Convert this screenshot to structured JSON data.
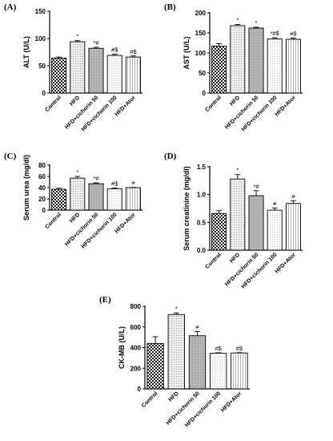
{
  "chart_data": [
    {
      "panel": "(A)",
      "type": "bar",
      "ylabel": "ALT (U/L)",
      "ylim": [
        0,
        150
      ],
      "yticks": [
        0,
        50,
        100,
        150
      ],
      "categories": [
        "Control",
        "HFD",
        "HFD+cichorin 50",
        "HFD+cichorin 100",
        "HFD+Ator"
      ],
      "values": [
        64,
        94,
        82,
        69,
        66
      ],
      "errors": [
        2,
        2,
        2,
        2,
        2
      ],
      "annotations": [
        "",
        "*",
        "*#",
        "#$",
        "#$"
      ]
    },
    {
      "panel": "(B)",
      "type": "bar",
      "ylabel": "AST (U/L)",
      "ylim": [
        0,
        200
      ],
      "yticks": [
        0,
        50,
        100,
        150,
        200
      ],
      "categories": [
        "Control",
        "HFD",
        "HFD+cichorin 50",
        "HFD+cichorin 100",
        "HFD+Ator"
      ],
      "values": [
        117,
        168,
        162,
        135,
        134
      ],
      "errors": [
        6,
        3,
        2,
        3,
        3
      ],
      "annotations": [
        "",
        "*",
        "*",
        "*#$",
        "#$"
      ]
    },
    {
      "panel": "(C)",
      "type": "bar",
      "ylabel": "Serum urea (mg/dl)",
      "ylim": [
        0,
        80
      ],
      "yticks": [
        0,
        20,
        40,
        60,
        80
      ],
      "categories": [
        "Control",
        "HFD",
        "HFD+cichorin 50",
        "HFD+cichorin 100",
        "HFD+Ator"
      ],
      "values": [
        37,
        57,
        47,
        38,
        40
      ],
      "errors": [
        2,
        3,
        1.5,
        1.5,
        0.5
      ],
      "annotations": [
        "",
        "*",
        "*#",
        "#$",
        "#"
      ]
    },
    {
      "panel": "(D)",
      "type": "bar",
      "ylabel": "Serum creatinine (mg/dl)",
      "ylim": [
        0,
        1.5
      ],
      "yticks": [
        "0.0",
        "0.5",
        "1.0",
        "1.5"
      ],
      "categories": [
        "Control",
        "HFD",
        "HFD+cichorin 50",
        "HFD+cichorin 100",
        "HFD+Ator"
      ],
      "values": [
        0.66,
        1.28,
        0.98,
        0.72,
        0.84
      ],
      "errors": [
        0.05,
        0.08,
        0.09,
        0.04,
        0.05
      ],
      "annotations": [
        "",
        "*",
        "*#",
        "#",
        "#"
      ]
    },
    {
      "panel": "(E)",
      "type": "bar",
      "ylabel": "CK-MB (U/L)",
      "ylim": [
        0,
        800
      ],
      "yticks": [
        0,
        200,
        400,
        600,
        800
      ],
      "categories": [
        "Control",
        "HFD",
        "HFD+cichorin 50",
        "HFD+cichorin 100",
        "HFD+Ator"
      ],
      "values": [
        440,
        720,
        515,
        345,
        348
      ],
      "errors": [
        65,
        15,
        40,
        5,
        3
      ],
      "annotations": [
        "",
        "*",
        "#",
        "#$",
        "#$"
      ]
    }
  ]
}
